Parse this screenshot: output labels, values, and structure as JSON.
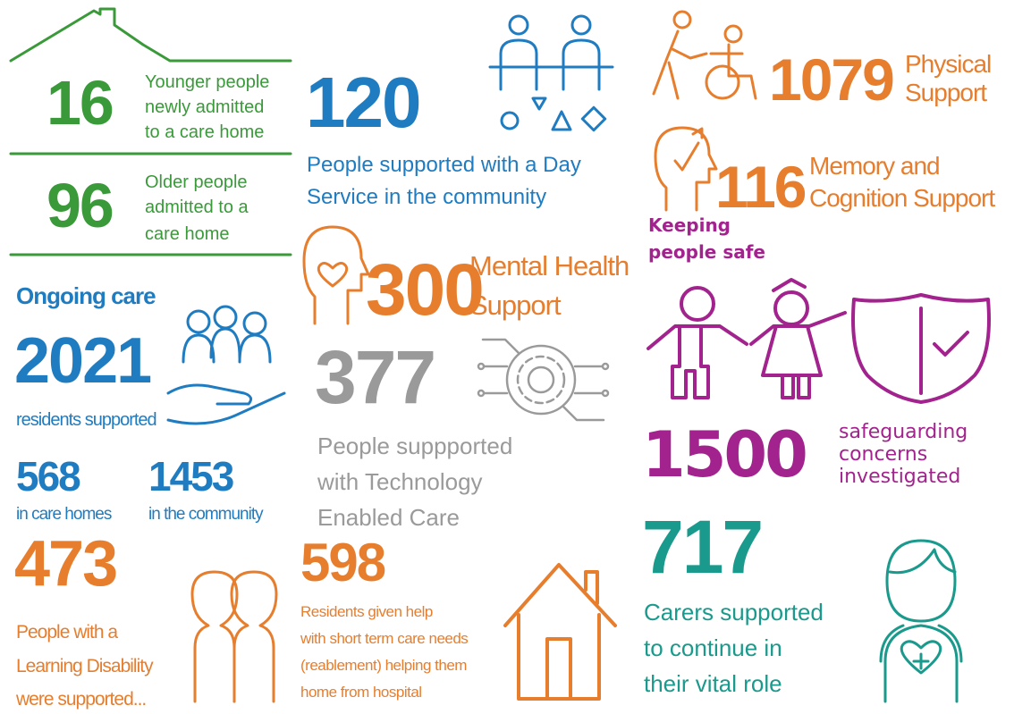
{
  "younger_admitted": {
    "value": 16,
    "label": [
      "Younger people",
      "newly admitted",
      "to a care home"
    ]
  },
  "older_admitted": {
    "value": 96,
    "label": [
      "Older people",
      "admitted to a",
      "care home"
    ]
  },
  "ongoing_care": {
    "heading": "Ongoing care",
    "total": {
      "value": 2021,
      "label": "residents supported"
    },
    "care_homes": {
      "value": 568,
      "label": "in care homes"
    },
    "community": {
      "value": 1453,
      "label": "in the community"
    }
  },
  "learning_disability": {
    "value": 473,
    "label": [
      "People with a",
      "Learning Disability",
      "were supported..."
    ]
  },
  "day_service": {
    "value": 120,
    "label": [
      "People supported with a Day",
      "Service in the community"
    ]
  },
  "mental_health": {
    "value": 300,
    "label": [
      "Mental Health",
      "Support"
    ]
  },
  "technology": {
    "value": 377,
    "label": [
      "People suppported",
      "with Technology",
      "Enabled Care"
    ]
  },
  "reablement": {
    "value": 598,
    "label": [
      "Residents given help",
      "with short term care needs",
      "(reablement) helping them",
      "home from hospital"
    ]
  },
  "physical_support": {
    "value": 1079,
    "label": [
      "Physical",
      "Support"
    ]
  },
  "memory_support": {
    "value": 116,
    "label": [
      "Memory and",
      "Cognition Support"
    ]
  },
  "keeping_safe": {
    "heading": [
      "Keeping",
      "people safe"
    ],
    "value": 1500,
    "label": [
      "safeguarding",
      "concerns",
      "investigated"
    ]
  },
  "carers": {
    "value": 717,
    "label": [
      "Carers supported",
      "to continue in",
      "their vital role"
    ]
  }
}
